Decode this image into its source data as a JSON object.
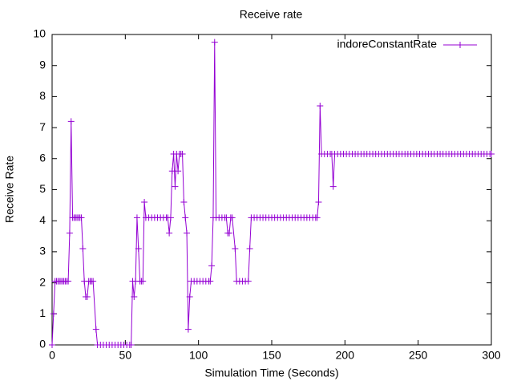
{
  "chart_data": {
    "type": "line",
    "title": "Receive rate",
    "x_label": "Simulation Time (Seconds)",
    "y_label": "Receive Rate",
    "xlim": [
      0,
      300
    ],
    "ylim": [
      0,
      10
    ],
    "xticks": [
      0,
      50,
      100,
      150,
      200,
      250,
      300
    ],
    "yticks": [
      0,
      1,
      2,
      3,
      4,
      5,
      6,
      7,
      8,
      9,
      10
    ],
    "legend": "top-right",
    "x": [
      0,
      1,
      2,
      3,
      4,
      5,
      6,
      7,
      8,
      9,
      10,
      11,
      12,
      13,
      14,
      15,
      16,
      17,
      18,
      19,
      20,
      21,
      22,
      23,
      24,
      25,
      26,
      27,
      28,
      30,
      31,
      33,
      35,
      37,
      39,
      41,
      43,
      45,
      47,
      49,
      51,
      53,
      54,
      55,
      56,
      57,
      58,
      59,
      60,
      61,
      62,
      63,
      64,
      66,
      68,
      70,
      72,
      74,
      76,
      78,
      79,
      80,
      81,
      82,
      83,
      84,
      85,
      86,
      87,
      88,
      89,
      90,
      91,
      92,
      93,
      94,
      95,
      97,
      99,
      101,
      103,
      105,
      107,
      108,
      109,
      110,
      111,
      112,
      114,
      116,
      118,
      119,
      120,
      121,
      122,
      123,
      125,
      126,
      128,
      130,
      132,
      134,
      135,
      136,
      138,
      140,
      142,
      144,
      146,
      148,
      150,
      152,
      154,
      156,
      158,
      160,
      162,
      164,
      166,
      168,
      170,
      172,
      174,
      176,
      178,
      180,
      181,
      182,
      183,
      184,
      186,
      188,
      190,
      191,
      192,
      193,
      195,
      197,
      199,
      201,
      203,
      205,
      207,
      209,
      211,
      213,
      215,
      217,
      219,
      221,
      223,
      225,
      227,
      229,
      231,
      233,
      235,
      237,
      239,
      241,
      243,
      245,
      247,
      249,
      251,
      253,
      255,
      257,
      259,
      261,
      263,
      265,
      267,
      269,
      271,
      273,
      275,
      277,
      279,
      281,
      283,
      285,
      287,
      289,
      291,
      293,
      295,
      297,
      299,
      300
    ],
    "series": [
      {
        "name": "indoreConstantRate",
        "color": "#9400d3",
        "values": [
          0,
          1.0,
          2.05,
          2.05,
          2.05,
          2.05,
          2.05,
          2.05,
          2.05,
          2.05,
          2.05,
          2.05,
          3.6,
          7.2,
          4.1,
          4.1,
          4.1,
          4.1,
          4.1,
          4.1,
          4.1,
          3.1,
          2.05,
          1.55,
          1.55,
          2.05,
          2.05,
          2.05,
          2.05,
          0.5,
          0,
          0,
          0,
          0,
          0,
          0,
          0,
          0,
          0,
          0,
          0,
          0,
          0,
          2.05,
          1.55,
          2.05,
          4.1,
          3.1,
          2.05,
          2.05,
          2.05,
          4.6,
          4.1,
          4.1,
          4.1,
          4.1,
          4.1,
          4.1,
          4.1,
          4.1,
          4.1,
          3.6,
          4.1,
          5.6,
          6.15,
          5.1,
          6.15,
          5.6,
          6.15,
          6.15,
          6.15,
          4.6,
          4.1,
          3.6,
          0.5,
          1.55,
          2.05,
          2.05,
          2.05,
          2.05,
          2.05,
          2.05,
          2.05,
          2.05,
          2.55,
          4.1,
          9.75,
          4.1,
          4.1,
          4.1,
          4.1,
          4.1,
          3.6,
          3.6,
          4.1,
          4.1,
          3.1,
          2.05,
          2.05,
          2.05,
          2.05,
          2.05,
          3.1,
          4.1,
          4.1,
          4.1,
          4.1,
          4.1,
          4.1,
          4.1,
          4.1,
          4.1,
          4.1,
          4.1,
          4.1,
          4.1,
          4.1,
          4.1,
          4.1,
          4.1,
          4.1,
          4.1,
          4.1,
          4.1,
          4.1,
          4.1,
          4.1,
          4.6,
          7.7,
          6.15,
          6.15,
          6.15,
          6.15,
          6.15,
          5.1,
          6.15,
          6.15,
          6.15,
          6.15,
          6.15,
          6.15,
          6.15,
          6.15,
          6.15,
          6.15,
          6.15,
          6.15,
          6.15,
          6.15,
          6.15,
          6.15,
          6.15,
          6.15,
          6.15,
          6.15,
          6.15,
          6.15,
          6.15,
          6.15,
          6.15,
          6.15,
          6.15,
          6.15,
          6.15,
          6.15,
          6.15,
          6.15,
          6.15,
          6.15,
          6.15,
          6.15,
          6.15,
          6.15,
          6.15,
          6.15,
          6.15,
          6.15,
          6.15,
          6.15,
          6.15,
          6.15,
          6.15,
          6.15,
          6.15,
          6.15,
          6.15,
          6.15,
          6.15,
          6.15,
          6.15
        ]
      }
    ]
  }
}
